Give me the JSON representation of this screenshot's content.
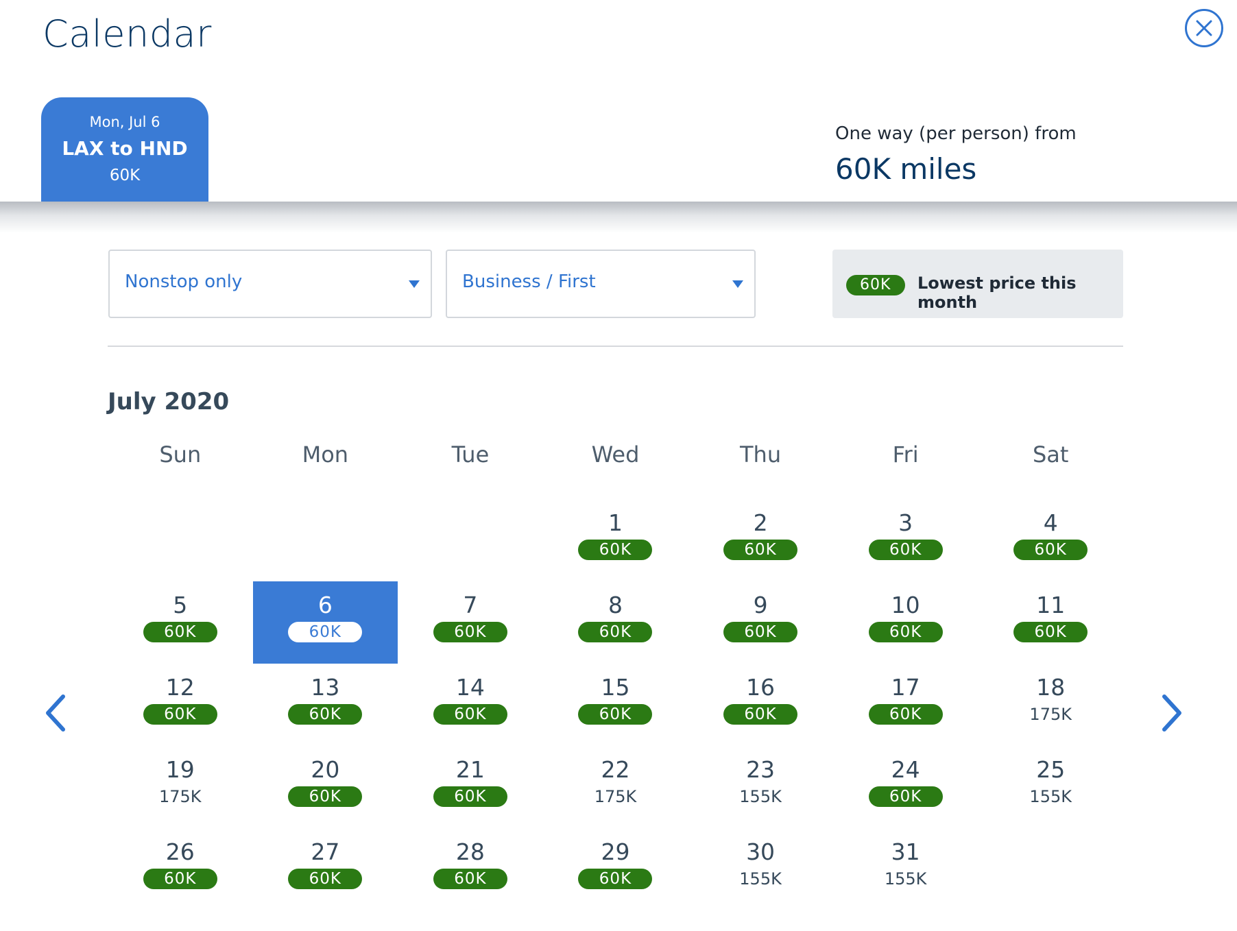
{
  "page": {
    "title": "Calendar"
  },
  "close_icon": "close-icon",
  "trip_tab": {
    "date": "Mon, Jul 6",
    "route": "LAX to HND",
    "price": "60K"
  },
  "fare_summary": {
    "label": "One way (per person) from",
    "value": "60K miles"
  },
  "filters": {
    "stops": {
      "selected": "Nonstop only"
    },
    "cabin": {
      "selected": "Business / First"
    }
  },
  "legend": {
    "badge": "60K",
    "text": "Lowest price this month"
  },
  "calendar": {
    "month": "July 2020",
    "weekdays": [
      "Sun",
      "Mon",
      "Tue",
      "Wed",
      "Thu",
      "Fri",
      "Sat"
    ],
    "selected_day": "6",
    "days": [
      {
        "day": "",
        "price": "",
        "lowest": false
      },
      {
        "day": "",
        "price": "",
        "lowest": false
      },
      {
        "day": "",
        "price": "",
        "lowest": false
      },
      {
        "day": "1",
        "price": "60K",
        "lowest": true
      },
      {
        "day": "2",
        "price": "60K",
        "lowest": true
      },
      {
        "day": "3",
        "price": "60K",
        "lowest": true
      },
      {
        "day": "4",
        "price": "60K",
        "lowest": true
      },
      {
        "day": "5",
        "price": "60K",
        "lowest": true
      },
      {
        "day": "6",
        "price": "60K",
        "lowest": true
      },
      {
        "day": "7",
        "price": "60K",
        "lowest": true
      },
      {
        "day": "8",
        "price": "60K",
        "lowest": true
      },
      {
        "day": "9",
        "price": "60K",
        "lowest": true
      },
      {
        "day": "10",
        "price": "60K",
        "lowest": true
      },
      {
        "day": "11",
        "price": "60K",
        "lowest": true
      },
      {
        "day": "12",
        "price": "60K",
        "lowest": true
      },
      {
        "day": "13",
        "price": "60K",
        "lowest": true
      },
      {
        "day": "14",
        "price": "60K",
        "lowest": true
      },
      {
        "day": "15",
        "price": "60K",
        "lowest": true
      },
      {
        "day": "16",
        "price": "60K",
        "lowest": true
      },
      {
        "day": "17",
        "price": "60K",
        "lowest": true
      },
      {
        "day": "18",
        "price": "175K",
        "lowest": false
      },
      {
        "day": "19",
        "price": "175K",
        "lowest": false
      },
      {
        "day": "20",
        "price": "60K",
        "lowest": true
      },
      {
        "day": "21",
        "price": "60K",
        "lowest": true
      },
      {
        "day": "22",
        "price": "175K",
        "lowest": false
      },
      {
        "day": "23",
        "price": "155K",
        "lowest": false
      },
      {
        "day": "24",
        "price": "60K",
        "lowest": true
      },
      {
        "day": "25",
        "price": "155K",
        "lowest": false
      },
      {
        "day": "26",
        "price": "60K",
        "lowest": true
      },
      {
        "day": "27",
        "price": "60K",
        "lowest": true
      },
      {
        "day": "28",
        "price": "60K",
        "lowest": true
      },
      {
        "day": "29",
        "price": "60K",
        "lowest": true
      },
      {
        "day": "30",
        "price": "155K",
        "lowest": false
      },
      {
        "day": "31",
        "price": "155K",
        "lowest": false
      }
    ]
  },
  "navigation": {
    "prev_icon": "chevron-left-icon",
    "next_icon": "chevron-right-icon"
  },
  "colors": {
    "accent_blue": "#3a7bd5",
    "link_blue": "#2f74d0",
    "title_navy": "#0b3864",
    "lowest_green": "#2b7a14",
    "text": "#36495a"
  }
}
